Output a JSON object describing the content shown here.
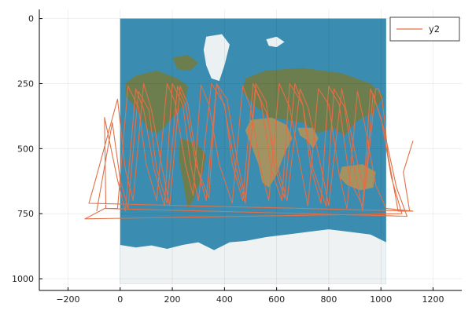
{
  "chart_data": {
    "type": "line",
    "background_image": "world-map-mercator",
    "xlim": [
      -310,
      1310
    ],
    "ylim": [
      1045,
      -35
    ],
    "y_axis_inverted": true,
    "grid": true,
    "legend_position": "top-right",
    "x_ticks": [
      {
        "value": -200,
        "label": "−200"
      },
      {
        "value": 0,
        "label": "0"
      },
      {
        "value": 200,
        "label": "200"
      },
      {
        "value": 400,
        "label": "400"
      },
      {
        "value": 600,
        "label": "600"
      },
      {
        "value": 800,
        "label": "800"
      },
      {
        "value": 1000,
        "label": "1000"
      },
      {
        "value": 1200,
        "label": "1200"
      }
    ],
    "y_ticks": [
      {
        "value": 0,
        "label": "0"
      },
      {
        "value": 250,
        "label": "250"
      },
      {
        "value": 500,
        "label": "500"
      },
      {
        "value": 750,
        "label": "750"
      },
      {
        "value": 1000,
        "label": "1000"
      }
    ],
    "image_extent": {
      "x": [
        0,
        1020
      ],
      "y": [
        0,
        1020
      ]
    },
    "series": [
      {
        "name": "y2",
        "color": "#e26f46",
        "x": [
          1123,
          1086,
          1110,
          1066,
          1026,
          1015,
          1004,
          990,
          980,
          940,
          920,
          870,
          850,
          800,
          770,
          720,
          690,
          640,
          600,
          560,
          520,
          480,
          440,
          400,
          370,
          330,
          300,
          260,
          230,
          190,
          160,
          120,
          90,
          50,
          20,
          -10,
          -100,
          -120,
          1123,
          1020,
          980,
          940,
          910,
          870,
          840,
          800,
          760,
          720,
          690,
          650,
          610,
          570,
          540,
          500,
          470,
          430,
          380,
          340,
          310,
          280,
          250,
          210,
          180,
          140,
          100,
          70,
          30,
          -10,
          -60,
          -135,
          1080,
          1040,
          1000,
          960,
          930,
          880,
          840,
          800,
          770,
          730,
          700,
          650,
          620,
          580,
          540,
          510,
          470,
          430,
          400,
          350,
          300,
          270,
          240,
          200,
          170,
          130,
          90,
          60,
          20,
          -10,
          -60,
          -55,
          1100,
          1060,
          1010,
          970,
          930,
          900,
          860,
          820,
          790,
          740,
          700,
          670,
          630,
          590,
          560,
          520,
          480,
          450,
          410,
          370,
          340,
          290,
          250,
          220,
          180,
          140,
          110,
          70,
          30,
          0,
          -30,
          -90
        ],
        "y": [
          470,
          590,
          740,
          740,
          520,
          400,
          310,
          270,
          270,
          650,
          600,
          370,
          270,
          720,
          570,
          340,
          270,
          700,
          560,
          360,
          270,
          710,
          560,
          340,
          250,
          700,
          590,
          330,
          260,
          720,
          570,
          350,
          250,
          700,
          580,
          310,
          640,
          710,
          740,
          730,
          640,
          420,
          280,
          730,
          600,
          330,
          270,
          720,
          560,
          340,
          250,
          700,
          580,
          340,
          260,
          710,
          560,
          330,
          255,
          680,
          560,
          320,
          250,
          700,
          560,
          340,
          260,
          730,
          730,
          770,
          750,
          610,
          380,
          270,
          720,
          620,
          330,
          260,
          710,
          570,
          330,
          250,
          700,
          580,
          320,
          250,
          700,
          560,
          330,
          250,
          700,
          560,
          330,
          250,
          720,
          580,
          350,
          270,
          740,
          620,
          380,
          730,
          760,
          650,
          420,
          290,
          740,
          590,
          340,
          270,
          720,
          580,
          330,
          250,
          690,
          560,
          320,
          250,
          690,
          550,
          310,
          250,
          690,
          560,
          330,
          260,
          710,
          580,
          350,
          280,
          730,
          620,
          400,
          740
        ]
      }
    ]
  }
}
